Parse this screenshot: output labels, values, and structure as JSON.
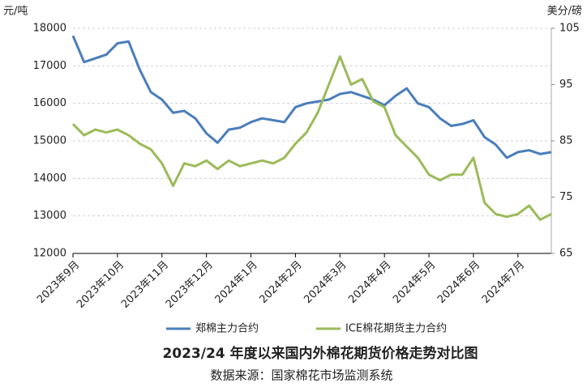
{
  "chart_data": {
    "type": "line",
    "title": "2023/24 年度以来国内外棉花期货价格走势对比图",
    "source": "数据来源：国家棉花市场监测系统",
    "y_label": "元/吨",
    "y2_label": "美分/磅",
    "categories": [
      "2023年9月",
      null,
      null,
      null,
      "2023年10月",
      null,
      null,
      null,
      "2023年11月",
      null,
      null,
      null,
      "2023年12月",
      null,
      null,
      null,
      "2024年1月",
      null,
      null,
      null,
      "2024年2月",
      null,
      null,
      null,
      "2024年3月",
      null,
      null,
      null,
      "2024年4月",
      null,
      null,
      null,
      "2024年5月",
      null,
      null,
      null,
      "2024年6月",
      null,
      null,
      null,
      "2024年7月",
      null,
      null,
      null
    ],
    "series": [
      {
        "name": "郑棉主力合约",
        "color": "#4a7ebb",
        "values": [
          17800,
          17100,
          17200,
          17300,
          17600,
          17650,
          16900,
          16300,
          16100,
          15750,
          15800,
          15600,
          15200,
          14950,
          15300,
          15350,
          15500,
          15600,
          15550,
          15500,
          15900,
          16000,
          16050,
          16100,
          16250,
          16300,
          16200,
          16100,
          15950,
          16200,
          16400,
          16000,
          15900,
          15600,
          15400,
          15450,
          15550,
          15100,
          14900,
          14550,
          14700,
          14750,
          14650,
          14700
        ]
      },
      {
        "name": "ICE棉花期货主力合约",
        "color": "#9bbb59",
        "axis": "y2",
        "values": [
          88,
          86,
          87,
          86.5,
          87,
          86,
          84.5,
          83.5,
          81,
          77,
          81,
          80.5,
          81.5,
          80,
          81.5,
          80.5,
          81,
          81.5,
          81,
          82,
          84.5,
          86.5,
          90,
          95,
          100,
          95,
          96,
          92,
          91,
          86,
          84,
          82,
          79,
          78,
          79,
          79,
          82,
          74,
          72,
          71.5,
          72,
          73.5,
          71,
          72
        ]
      }
    ],
    "ylim": [
      12000,
      18000
    ],
    "yticks": [
      12000,
      13000,
      14000,
      15000,
      16000,
      17000,
      18000
    ],
    "y2lim": [
      65,
      105
    ],
    "y2ticks": [
      65,
      75,
      85,
      95,
      105
    ],
    "grid": true
  }
}
